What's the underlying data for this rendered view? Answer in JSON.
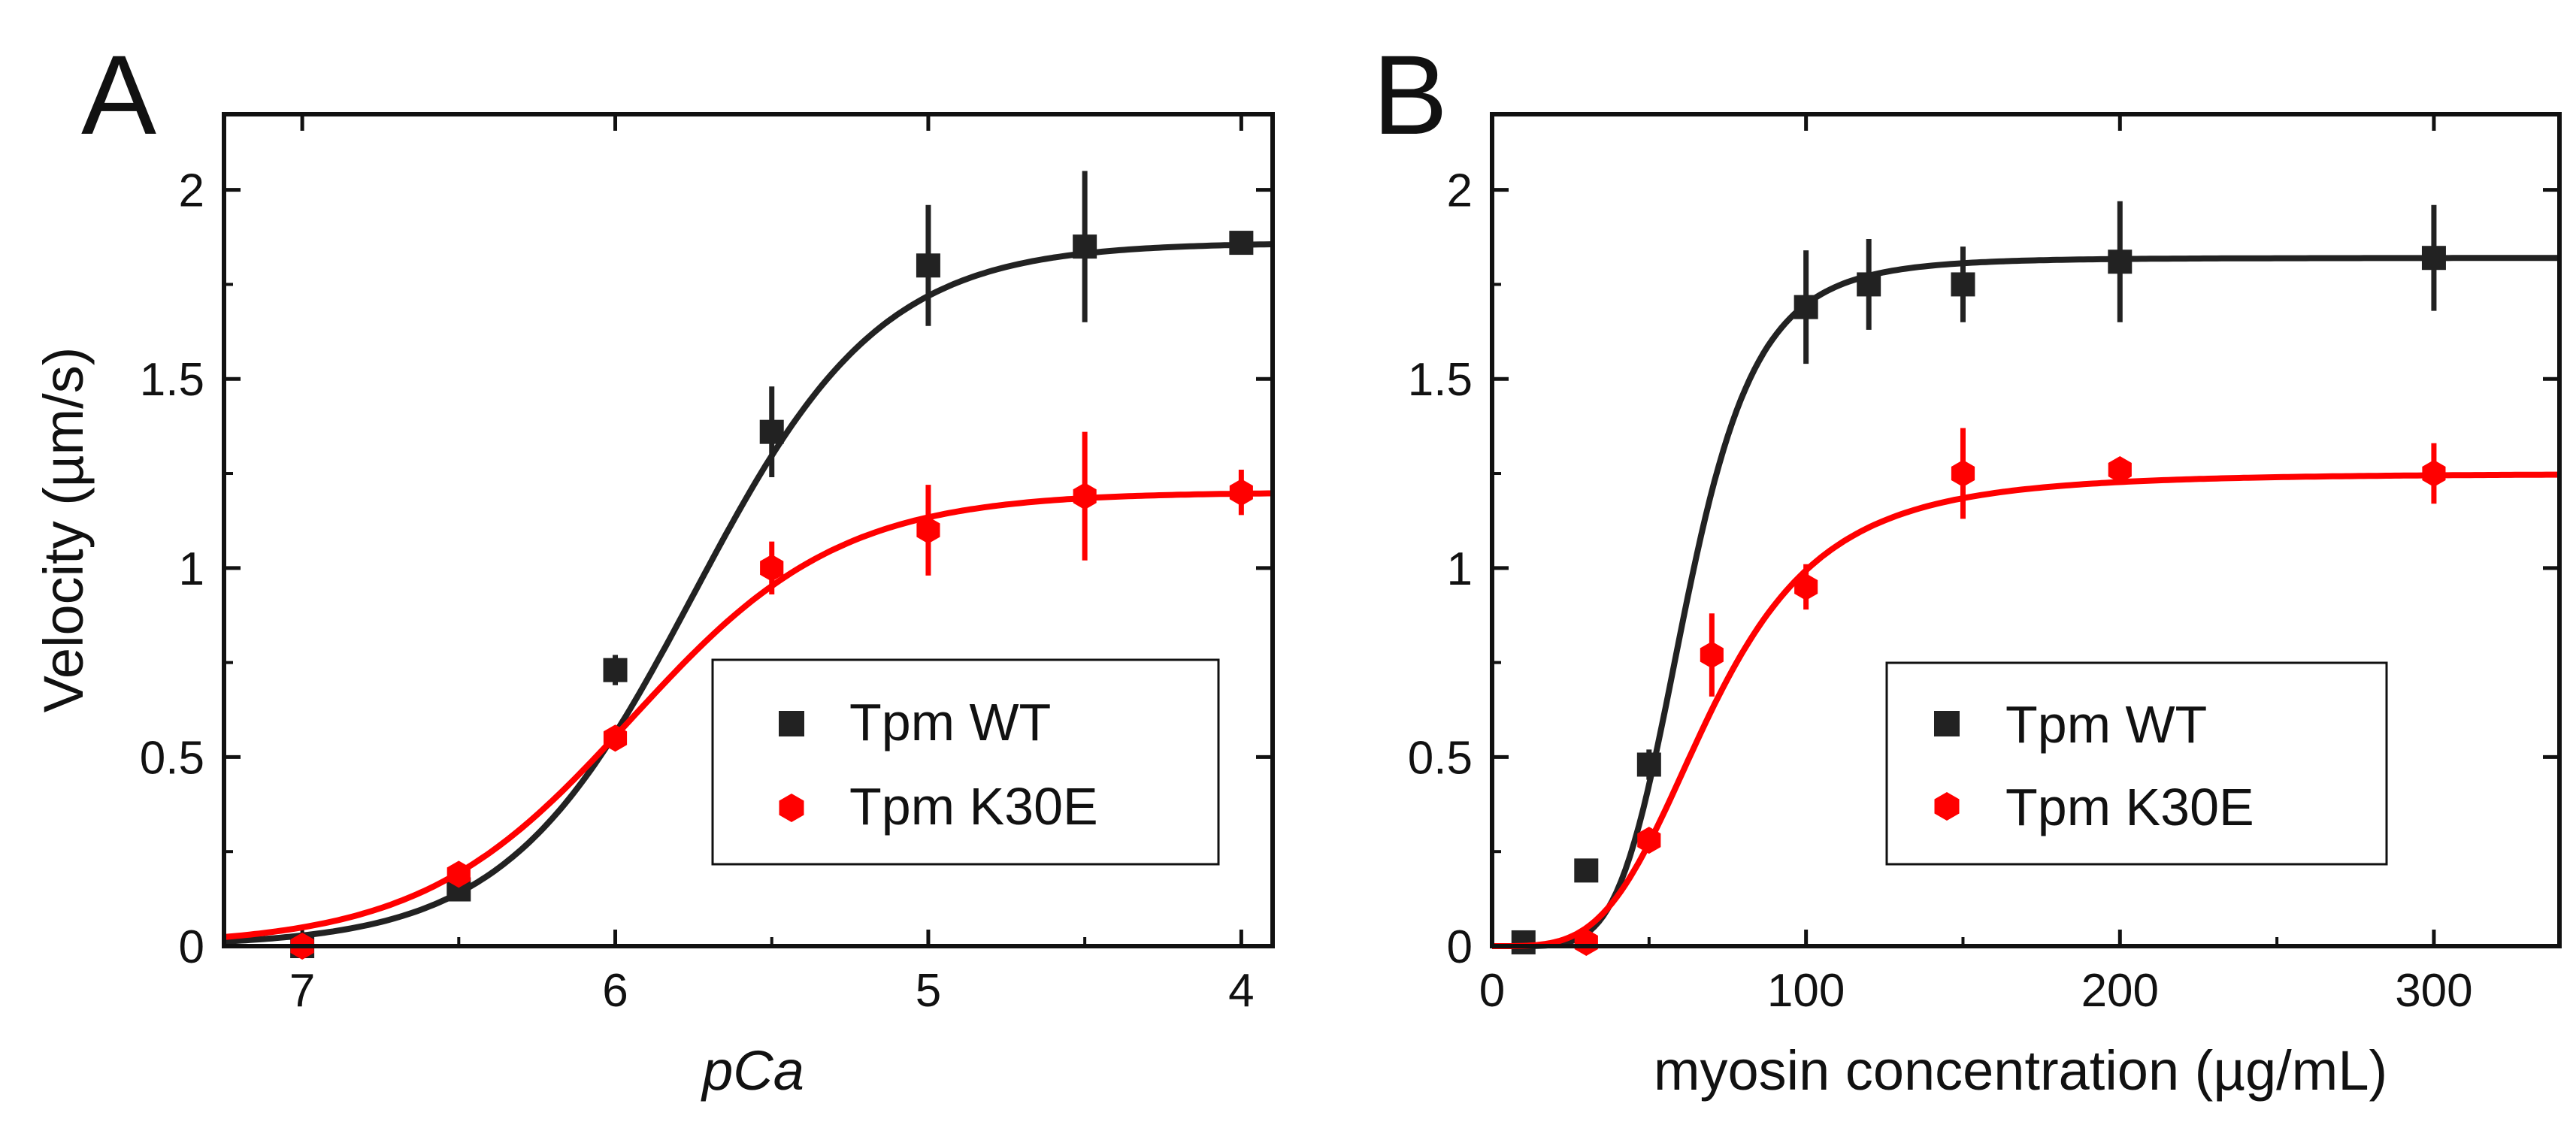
{
  "figure": {
    "colors": {
      "wt": "#222222",
      "k30e": "#ff0000",
      "axis": "#111111"
    }
  },
  "chart_data": [
    {
      "panel": "A",
      "type": "scatter",
      "title": "",
      "xlabel": "pCa",
      "ylabel": "Velocity (µm/s)",
      "xlim": [
        7.25,
        3.9
      ],
      "ylim": [
        0,
        2.2
      ],
      "x_ticks": [
        7,
        6,
        5,
        4
      ],
      "x_tick_labels": [
        "7",
        "6",
        "5",
        "4"
      ],
      "y_ticks": [
        0,
        0.5,
        1,
        1.5,
        2
      ],
      "y_tick_labels": [
        "0",
        "0.5",
        "1",
        "1.5",
        "2"
      ],
      "legend_position": "center-right",
      "series": [
        {
          "name": "Tpm WT",
          "marker": "square",
          "color": "#222222",
          "x": [
            7,
            6.5,
            6,
            5.5,
            5,
            4.5,
            4
          ],
          "y": [
            0,
            0.15,
            0.73,
            1.36,
            1.8,
            1.85,
            1.86
          ],
          "err": [
            0,
            0.03,
            0.04,
            0.12,
            0.16,
            0.2,
            0.02
          ],
          "fit": {
            "model": "Hill",
            "vmax": 1.86,
            "pCa50": 5.75,
            "nH": 1.45
          }
        },
        {
          "name": "Tpm K30E",
          "marker": "hexagon",
          "color": "#ff0000",
          "x": [
            7,
            6.5,
            6,
            5.5,
            5,
            4.5,
            4
          ],
          "y": [
            0,
            0.19,
            0.55,
            1.0,
            1.1,
            1.19,
            1.2
          ],
          "err": [
            0,
            0.03,
            0.03,
            0.07,
            0.12,
            0.17,
            0.06
          ],
          "fit": {
            "model": "Hill",
            "vmax": 1.2,
            "pCa50": 5.95,
            "nH": 1.3
          }
        }
      ]
    },
    {
      "panel": "B",
      "type": "scatter",
      "title": "",
      "xlabel": "myosin concentration (µg/mL)",
      "ylabel": "",
      "xlim": [
        0,
        340
      ],
      "ylim": [
        0,
        2.2
      ],
      "x_ticks": [
        0,
        100,
        200,
        300
      ],
      "x_tick_labels": [
        "0",
        "100",
        "200",
        "300"
      ],
      "y_ticks": [
        0,
        0.5,
        1,
        1.5,
        2
      ],
      "y_tick_labels": [
        "0",
        "0.5",
        "1",
        "1.5",
        "2"
      ],
      "legend_position": "center-right",
      "series": [
        {
          "name": "Tpm WT",
          "marker": "square",
          "color": "#222222",
          "x": [
            10,
            30,
            50,
            100,
            120,
            150,
            200,
            300
          ],
          "y": [
            0.01,
            0.2,
            0.48,
            1.69,
            1.75,
            1.75,
            1.81,
            1.82
          ],
          "err": [
            0,
            0.03,
            0.04,
            0.15,
            0.12,
            0.1,
            0.16,
            0.14
          ],
          "fit": {
            "model": "Hill",
            "vmax": 1.82,
            "K": 62,
            "n": 5.5
          }
        },
        {
          "name": "Tpm K30E",
          "marker": "hexagon",
          "color": "#ff0000",
          "x": [
            30,
            50,
            70,
            100,
            150,
            200,
            300
          ],
          "y": [
            0.01,
            0.28,
            0.77,
            0.95,
            1.25,
            1.26,
            1.25
          ],
          "err": [
            0,
            0.03,
            0.11,
            0.06,
            0.12,
            0.03,
            0.08
          ],
          "fit": {
            "model": "Hill",
            "vmax": 1.25,
            "K": 70,
            "n": 3.8
          }
        }
      ]
    }
  ]
}
